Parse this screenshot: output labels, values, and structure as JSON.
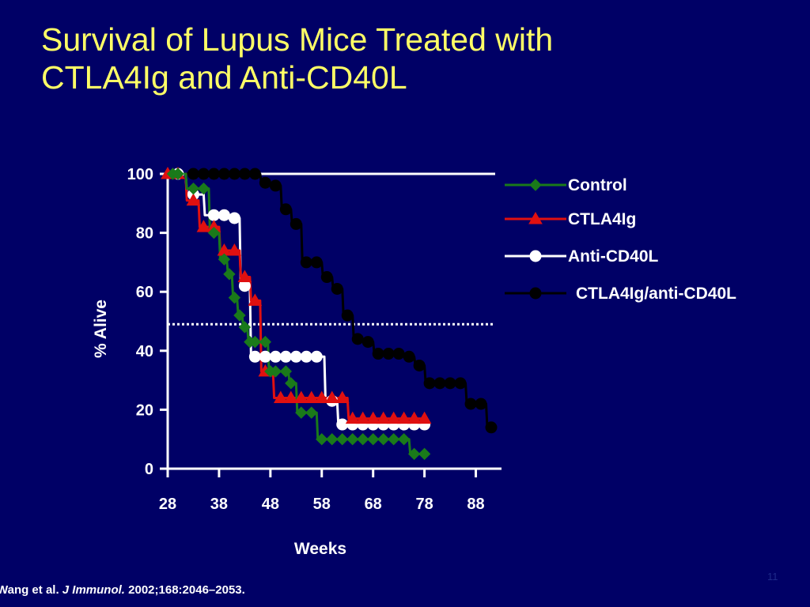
{
  "title": {
    "line1": "Survival of Lupus Mice Treated with",
    "line2": "CTLA4Ig and Anti-CD40L"
  },
  "citation": {
    "authors": "Wang et al.",
    "journal": "J Immunol.",
    "details": "2002;168:2046–2053."
  },
  "slide_number": "11",
  "chart_data": {
    "type": "line",
    "step": true,
    "xlabel": "Weeks",
    "ylabel": "% Alive",
    "x_ticks": [
      28,
      38,
      48,
      58,
      68,
      78,
      88
    ],
    "y_ticks": [
      0,
      20,
      40,
      60,
      80,
      100
    ],
    "xlim": [
      28,
      93
    ],
    "ylim": [
      0,
      100
    ],
    "grid": false,
    "legend_position": "right",
    "reference_lines": [
      {
        "orientation": "horizontal",
        "y": 100,
        "style": "solid",
        "color": "#ffffff"
      },
      {
        "orientation": "horizontal",
        "y": 49,
        "style": "dotted",
        "color": "#ffffff"
      }
    ],
    "series": [
      {
        "name": "Control",
        "color": "#1a7a1a",
        "marker": "diamond",
        "x": [
          29,
          30,
          33,
          35,
          37,
          39,
          40,
          41,
          42,
          43,
          44,
          45,
          47,
          48,
          49,
          51,
          52,
          54,
          56,
          58,
          60,
          62,
          64,
          66,
          68,
          70,
          72,
          74,
          76,
          78
        ],
        "y": [
          100,
          100,
          95,
          95,
          80,
          71,
          66,
          58,
          52,
          48,
          43,
          43,
          43,
          33,
          33,
          33,
          29,
          19,
          19,
          10,
          10,
          10,
          10,
          10,
          10,
          10,
          10,
          10,
          5,
          5
        ]
      },
      {
        "name": "CTLA4Ig",
        "color": "#e01010",
        "marker": "triangle",
        "x": [
          28,
          30,
          33,
          35,
          37,
          39,
          41,
          43,
          45,
          47,
          50,
          52,
          54,
          56,
          58,
          60,
          62,
          64,
          66,
          68,
          70,
          72,
          74,
          76,
          78
        ],
        "y": [
          100,
          100,
          91,
          82,
          82,
          74,
          74,
          65,
          57,
          33,
          24,
          24,
          24,
          24,
          24,
          24,
          24,
          17,
          17,
          17,
          17,
          17,
          17,
          17,
          17
        ]
      },
      {
        "name": "Anti-CD40L",
        "color": "#ffffff",
        "marker": "circle",
        "x": [
          30,
          33,
          37,
          39,
          41,
          43,
          45,
          47,
          49,
          51,
          53,
          55,
          57,
          60,
          62,
          64,
          66,
          68,
          70,
          72,
          74,
          76,
          78
        ],
        "y": [
          100,
          93,
          86,
          86,
          85,
          62,
          38,
          38,
          38,
          38,
          38,
          38,
          38,
          23,
          15,
          15,
          15,
          15,
          15,
          15,
          15,
          15,
          15
        ]
      },
      {
        "name": "CTLA4Ig/anti-CD40L",
        "color": "#000000",
        "marker": "circle",
        "x": [
          30,
          33,
          35,
          37,
          39,
          41,
          43,
          45,
          47,
          49,
          51,
          53,
          55,
          57,
          59,
          61,
          63,
          65,
          67,
          69,
          71,
          73,
          75,
          77,
          79,
          81,
          83,
          85,
          87,
          89,
          91
        ],
        "y": [
          100,
          100,
          100,
          100,
          100,
          100,
          100,
          100,
          97,
          96,
          88,
          83,
          70,
          70,
          65,
          61,
          52,
          44,
          43,
          39,
          39,
          39,
          38,
          35,
          29,
          29,
          29,
          29,
          22,
          22,
          14
        ]
      }
    ]
  }
}
